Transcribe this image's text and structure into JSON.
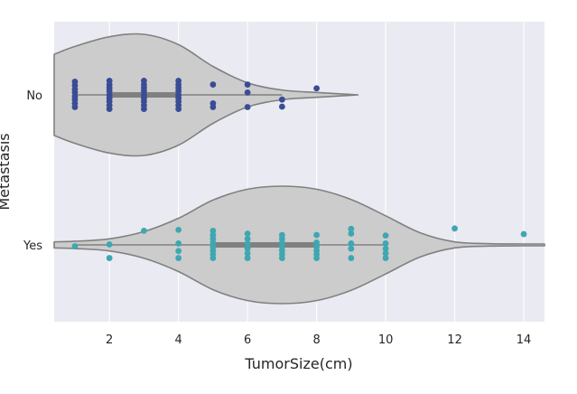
{
  "chart_data": {
    "type": "violin",
    "orientation": "horizontal",
    "xlabel": "TumorSize(cm)",
    "ylabel": "Metastasis",
    "xlim": [
      0.4,
      14.6
    ],
    "xticks": [
      2,
      4,
      6,
      8,
      10,
      12,
      14
    ],
    "categories": [
      "No",
      "Yes"
    ],
    "grid": true,
    "colors": {
      "background": "#eaeaf2",
      "grid": "#ffffff",
      "violin_fill": "#cccccc",
      "violin_edge": "#808080",
      "box": "#808080",
      "No": "#3a4c96",
      "Yes": "#3ea7b2"
    },
    "violins": [
      {
        "category": "No",
        "quartiles": [
          2,
          4
        ],
        "whiskers": [
          1,
          7
        ],
        "density_x": [
          0.4,
          1,
          2,
          3,
          4,
          5,
          6,
          7,
          8,
          9.2
        ],
        "density_w": [
          0.67,
          0.8,
          0.96,
          1.0,
          0.83,
          0.47,
          0.2,
          0.08,
          0.04,
          0.0
        ],
        "points": [
          [
            1,
            -0.28
          ],
          [
            1,
            -0.2
          ],
          [
            1,
            -0.12
          ],
          [
            1,
            -0.05
          ],
          [
            1,
            0.03
          ],
          [
            1,
            0.1
          ],
          [
            1,
            0.18
          ],
          [
            1,
            0.26
          ],
          [
            2,
            -0.3
          ],
          [
            2,
            -0.22
          ],
          [
            2,
            -0.15
          ],
          [
            2,
            -0.08
          ],
          [
            2,
            0.0
          ],
          [
            2,
            0.07
          ],
          [
            2,
            0.14
          ],
          [
            2,
            0.22
          ],
          [
            2,
            0.3
          ],
          [
            3,
            -0.3
          ],
          [
            3,
            -0.22
          ],
          [
            3,
            -0.15
          ],
          [
            3,
            -0.08
          ],
          [
            3,
            0.0
          ],
          [
            3,
            0.07
          ],
          [
            3,
            0.14
          ],
          [
            3,
            0.22
          ],
          [
            3,
            0.3
          ],
          [
            4,
            -0.3
          ],
          [
            4,
            -0.22
          ],
          [
            4,
            -0.15
          ],
          [
            4,
            -0.08
          ],
          [
            4,
            0.0
          ],
          [
            4,
            0.07
          ],
          [
            4,
            0.14
          ],
          [
            4,
            0.22
          ],
          [
            4,
            0.3
          ],
          [
            5,
            -0.22
          ],
          [
            5,
            0.18
          ],
          [
            5,
            0.26
          ],
          [
            6,
            -0.22
          ],
          [
            6,
            -0.05
          ],
          [
            6,
            0.26
          ],
          [
            7,
            0.1
          ],
          [
            7,
            0.25
          ],
          [
            8,
            -0.14
          ]
        ]
      },
      {
        "category": "Yes",
        "quartiles": [
          5,
          8
        ],
        "whiskers": [
          1,
          10
        ],
        "density_x": [
          0.4,
          1,
          2,
          3,
          4,
          5,
          6,
          7,
          8,
          9,
          10,
          11,
          12,
          13,
          14,
          14.6
        ],
        "density_w": [
          0.05,
          0.06,
          0.1,
          0.22,
          0.44,
          0.74,
          0.92,
          0.97,
          0.92,
          0.75,
          0.48,
          0.2,
          0.05,
          0.02,
          0.015,
          0.015
        ],
        "points": [
          [
            1,
            0.03
          ],
          [
            2,
            0.28
          ],
          [
            2,
            -0.01
          ],
          [
            3,
            -0.3
          ],
          [
            4,
            0.28
          ],
          [
            4,
            0.13
          ],
          [
            4,
            -0.03
          ],
          [
            4,
            -0.32
          ],
          [
            5,
            0.28
          ],
          [
            5,
            0.2
          ],
          [
            5,
            0.12
          ],
          [
            5,
            0.04
          ],
          [
            5,
            -0.05
          ],
          [
            5,
            -0.13
          ],
          [
            5,
            -0.21
          ],
          [
            5,
            -0.3
          ],
          [
            6,
            0.28
          ],
          [
            6,
            0.18
          ],
          [
            6,
            0.08
          ],
          [
            6,
            -0.03
          ],
          [
            6,
            -0.13
          ],
          [
            6,
            -0.24
          ],
          [
            7,
            0.28
          ],
          [
            7,
            0.2
          ],
          [
            7,
            0.12
          ],
          [
            7,
            0.04
          ],
          [
            7,
            -0.05
          ],
          [
            7,
            -0.13
          ],
          [
            7,
            -0.21
          ],
          [
            8,
            0.28
          ],
          [
            8,
            0.2
          ],
          [
            8,
            0.12
          ],
          [
            8,
            0.04
          ],
          [
            8,
            -0.05
          ],
          [
            8,
            -0.21
          ],
          [
            9,
            0.28
          ],
          [
            9,
            0.08
          ],
          [
            9,
            -0.03
          ],
          [
            9,
            -0.24
          ],
          [
            9,
            -0.34
          ],
          [
            10,
            0.28
          ],
          [
            10,
            0.18
          ],
          [
            10,
            0.08
          ],
          [
            10,
            -0.03
          ],
          [
            10,
            -0.2
          ],
          [
            12,
            -0.35
          ],
          [
            14,
            -0.23
          ]
        ]
      }
    ]
  }
}
